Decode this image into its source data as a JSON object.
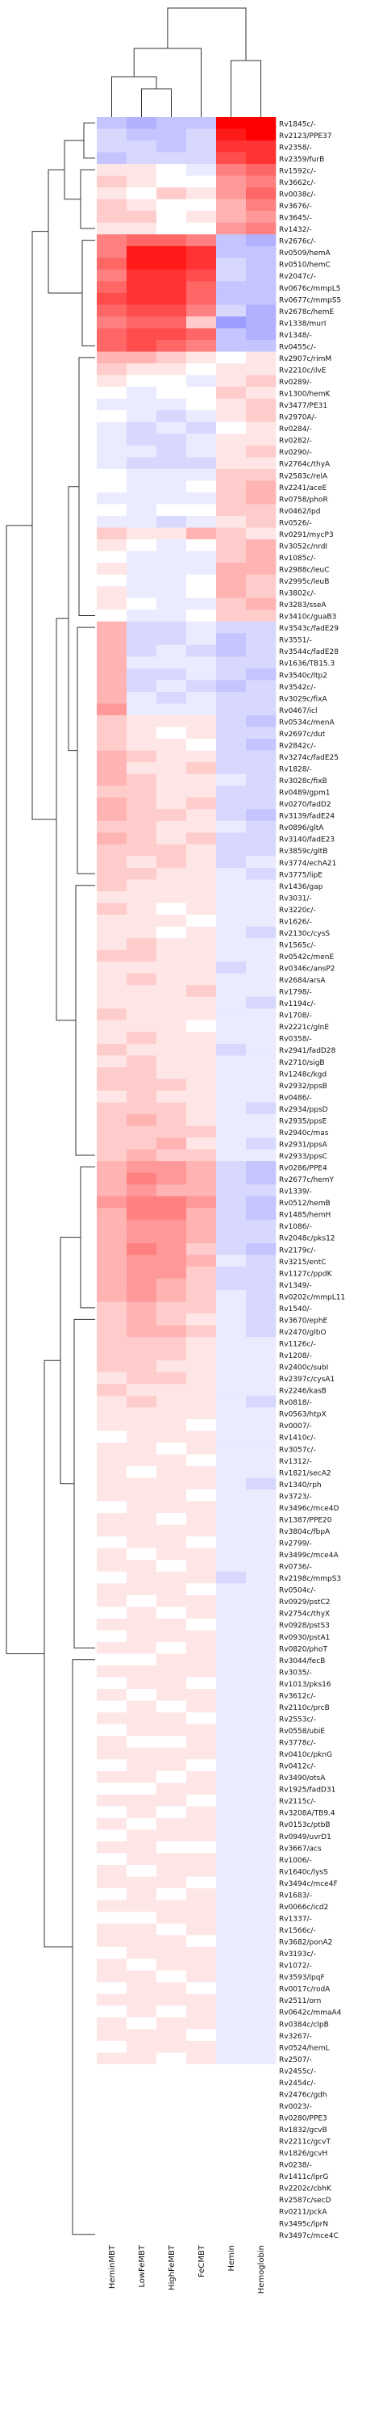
{
  "chart_data": {
    "type": "heatmap",
    "title": "",
    "xlabel": "",
    "ylabel": "",
    "color_scale": {
      "low": "#3b3bff",
      "mid": "#ffffff",
      "high": "#ff0000",
      "range": [
        -1,
        1
      ]
    },
    "columns": [
      "HeminMBT",
      "LowFeMBT",
      "HighFeMBT",
      "FeCMBT",
      "Hemin",
      "Hemoglobin"
    ],
    "rows": [
      "Rv1845c/-",
      "Rv2123/PPE37",
      "Rv2358/-",
      "Rv2359/furB",
      "Rv1592c/-",
      "Rv3662c/-",
      "Rv0038c/-",
      "Rv3676/-",
      "Rv3645/-",
      "Rv1432/-",
      "Rv2676c/-",
      "Rv0509/hemA",
      "Rv0510/hemC",
      "Rv2047c/-",
      "Rv0676c/mmpL5",
      "Rv0677c/mmpS5",
      "Rv2678c/hemE",
      "Rv1338/murI",
      "Rv1348/-",
      "Rv0455c/-",
      "Rv2907c/rimM",
      "Rv2210c/ilvE",
      "Rv0289/-",
      "Rv1300/hemK",
      "Rv3477/PE31",
      "Rv2970A/-",
      "Rv0284/-",
      "Rv0282/-",
      "Rv0290/-",
      "Rv2764c/thyA",
      "Rv2583c/relA",
      "Rv2241/aceE",
      "Rv0758/phoR",
      "Rv0462/lpd",
      "Rv0526/-",
      "Rv0291/mycP3",
      "Rv3052c/nrdI",
      "Rv1085c/-",
      "Rv2988c/leuC",
      "Rv2995c/leuB",
      "Rv3802c/-",
      "Rv3283/sseA",
      "Rv3410c/guaB3",
      "Rv3543c/fadE29",
      "Rv3551/-",
      "Rv3544c/fadE28",
      "Rv1636/TB15.3",
      "Rv3540c/ltp2",
      "Rv3542c/-",
      "Rv3029c/fixA",
      "Rv0467/icl",
      "Rv0534c/menA",
      "Rv2697c/dut",
      "Rv2842c/-",
      "Rv3274c/fadE25",
      "Rv1828/-",
      "Rv3028c/fixB",
      "Rv0489/gpm1",
      "Rv0270/fadD2",
      "Rv3139/fadE24",
      "Rv0896/gltA",
      "Rv3140/fadE23",
      "Rv3859c/gltB",
      "Rv3774/echA21",
      "Rv3775/lipE",
      "Rv1436/gap",
      "Rv3031/-",
      "Rv3220c/-",
      "Rv1626/-",
      "Rv2130c/cysS",
      "Rv1565c/-",
      "Rv0542c/menE",
      "Rv0346c/ansP2",
      "Rv2684/arsA",
      "Rv1798/-",
      "Rv1194c/-",
      "Rv1708/-",
      "Rv2221c/glnE",
      "Rv0358/-",
      "Rv2941/fadD28",
      "Rv2710/sigB",
      "Rv1248c/kgd",
      "Rv2932/ppsB",
      "Rv0486/-",
      "Rv2934/ppsD",
      "Rv2935/ppsE",
      "Rv2940c/mas",
      "Rv2931/ppsA",
      "Rv2933/ppsC",
      "Rv0286/PPE4",
      "Rv2677c/hemY",
      "Rv1339/-",
      "Rv0512/hemB",
      "Rv1485/hemH",
      "Rv1086/-",
      "Rv2048c/pks12",
      "Rv2179c/-",
      "Rv3215/entC",
      "Rv1127c/ppdK",
      "Rv1349/-",
      "Rv0202c/mmpL11",
      "Rv1540/-",
      "Rv3670/ephE",
      "Rv2470/glbO",
      "Rv1126c/-",
      "Rv1208/-",
      "Rv2400c/subI",
      "Rv2397c/cysA1",
      "Rv2246/kasB",
      "Rv0818/-",
      "Rv0563/htpX",
      "Rv0007/-",
      "Rv1410c/-",
      "Rv3057c/-",
      "Rv1312/-",
      "Rv1821/secA2",
      "Rv1340/rph",
      "Rv3723/-",
      "Rv3496c/mce4D",
      "Rv1387/PPE20",
      "Rv3804c/fbpA",
      "Rv2799/-",
      "Rv3499c/mce4A",
      "Rv0736/-",
      "Rv2198c/mmpS3",
      "Rv0504c/-",
      "Rv0929/pstC2",
      "Rv2754c/thyX",
      "Rv0928/pstS3",
      "Rv0930/pstA1",
      "Rv0820/phoT",
      "Rv3044/fecB",
      "Rv3035/-",
      "Rv1013/pks16",
      "Rv3612c/-",
      "Rv2110c/prcB",
      "Rv2553c/-",
      "Rv0558/ubiE",
      "Rv3778c/-",
      "Rv0410c/pknG",
      "Rv0412c/-",
      "Rv3490/otsA",
      "Rv1925/fadD31",
      "Rv2115c/-",
      "Rv3208A/TB9.4",
      "Rv0153c/ptbB",
      "Rv0949/uvrD1",
      "Rv3667/acs",
      "Rv1006/-",
      "Rv1640c/lysS",
      "Rv3494c/mce4F",
      "Rv1683/-",
      "Rv0066c/icd2",
      "Rv1337/-",
      "Rv1566c/-",
      "Rv3682/ponA2",
      "Rv3193c/-",
      "Rv1072/-",
      "Rv3593/lpqF",
      "Rv0017c/rodA",
      "Rv2511/orn",
      "Rv0642c/mmaA4",
      "Rv0384c/clpB",
      "Rv3267/-",
      "Rv0524/hemL",
      "Rv2507/-",
      "Rv2455c/-",
      "Rv2454c/-",
      "Rv2476c/gdh",
      "Rv0023/-",
      "Rv0280/PPE3",
      "Rv1832/gcvB",
      "Rv2211c/gcvT",
      "Rv1826/gcvH",
      "Rv0238/-",
      "Rv1411c/lprG",
      "Rv2202c/cbhK",
      "Rv2587c/secD",
      "Rv0211/pckA",
      "Rv3495c/lprN",
      "Rv3497c/mce4C"
    ],
    "values": [
      [
        -0.3,
        -0.4,
        -0.3,
        -0.3,
        1,
        1
      ],
      [
        -0.2,
        -0.3,
        -0.3,
        -0.2,
        0.9,
        1
      ],
      [
        -0.2,
        -0.2,
        -0.3,
        -0.2,
        0.8,
        0.8
      ],
      [
        -0.3,
        -0.2,
        -0.2,
        -0.2,
        0.7,
        0.8
      ],
      [
        0.1,
        0.1,
        0,
        -0.1,
        0.5,
        0.6
      ],
      [
        0.2,
        0.1,
        0,
        0,
        0.4,
        0.5
      ],
      [
        0.1,
        0,
        0.2,
        0.1,
        0.4,
        0.6
      ],
      [
        0.2,
        0.1,
        0,
        0,
        0.3,
        0.5
      ],
      [
        0.2,
        0.2,
        0,
        0.1,
        0.3,
        0.4
      ],
      [
        0.1,
        0.1,
        0,
        0,
        0.4,
        0.5
      ],
      [
        0.5,
        0.6,
        0.6,
        0.5,
        -0.3,
        -0.4
      ],
      [
        0.5,
        0.9,
        0.9,
        0.8,
        -0.3,
        -0.3
      ],
      [
        0.6,
        0.9,
        0.9,
        0.8,
        -0.2,
        -0.3
      ],
      [
        0.5,
        0.8,
        0.8,
        0.7,
        -0.2,
        -0.3
      ],
      [
        0.6,
        0.8,
        0.8,
        0.6,
        -0.3,
        -0.3
      ],
      [
        0.7,
        0.8,
        0.8,
        0.6,
        -0.3,
        -0.3
      ],
      [
        0.6,
        0.7,
        0.7,
        0.5,
        -0.2,
        -0.4
      ],
      [
        0.5,
        0.6,
        0.6,
        0.2,
        -0.5,
        -0.4
      ],
      [
        0.6,
        0.7,
        0.7,
        0.6,
        -0.3,
        -0.4
      ],
      [
        0.6,
        0.7,
        0.6,
        0.5,
        -0.3,
        -0.3
      ],
      [
        0.3,
        0.3,
        0.2,
        0.1,
        0,
        0.1
      ],
      [
        0.2,
        0.1,
        0.1,
        0,
        0.1,
        0.1
      ],
      [
        0.1,
        0,
        0,
        -0.1,
        0.1,
        0.2
      ],
      [
        0,
        -0.1,
        0,
        0,
        0.2,
        0.1
      ],
      [
        -0.1,
        -0.1,
        -0.1,
        0,
        0.1,
        0.2
      ],
      [
        0,
        -0.1,
        -0.2,
        -0.1,
        0.1,
        0.2
      ],
      [
        -0.1,
        -0.2,
        -0.1,
        -0.2,
        0,
        0.1
      ],
      [
        -0.1,
        -0.2,
        -0.2,
        -0.1,
        0.1,
        0.1
      ],
      [
        -0.1,
        -0.1,
        -0.2,
        -0.1,
        0.1,
        0.2
      ],
      [
        -0.1,
        -0.2,
        -0.2,
        -0.2,
        0.1,
        0.1
      ],
      [
        0,
        -0.1,
        -0.1,
        -0.1,
        0.2,
        0.2
      ],
      [
        0,
        -0.1,
        -0.1,
        0,
        0.2,
        0.3
      ],
      [
        -0.1,
        -0.1,
        -0.1,
        -0.1,
        0.2,
        0.3
      ],
      [
        0,
        -0.1,
        0,
        0,
        0.2,
        0.2
      ],
      [
        -0.1,
        -0.1,
        -0.2,
        -0.1,
        0.1,
        0.2
      ],
      [
        0.2,
        0.1,
        0.1,
        0.3,
        0.2,
        0.1
      ],
      [
        0.1,
        0,
        -0.1,
        0,
        0.2,
        0.3
      ],
      [
        0,
        -0.1,
        -0.1,
        -0.1,
        0.2,
        0.3
      ],
      [
        0.1,
        -0.1,
        -0.1,
        -0.1,
        0.3,
        0.3
      ],
      [
        0,
        -0.1,
        -0.1,
        0,
        0.3,
        0.2
      ],
      [
        0.1,
        -0.1,
        -0.1,
        0,
        0.3,
        0.2
      ],
      [
        0.1,
        0,
        -0.1,
        -0.1,
        0.2,
        0.3
      ],
      [
        0,
        -0.1,
        -0.1,
        0,
        0.2,
        0.2
      ],
      [
        0.3,
        -0.2,
        -0.2,
        -0.1,
        -0.2,
        -0.2
      ],
      [
        0.3,
        -0.2,
        -0.2,
        -0.1,
        -0.3,
        -0.2
      ],
      [
        0.3,
        -0.2,
        -0.1,
        -0.2,
        -0.3,
        -0.2
      ],
      [
        0.3,
        -0.1,
        -0.1,
        -0.1,
        -0.2,
        -0.2
      ],
      [
        0.3,
        -0.2,
        -0.2,
        -0.1,
        -0.2,
        -0.3
      ],
      [
        0.3,
        -0.2,
        -0.1,
        -0.2,
        -0.3,
        -0.2
      ],
      [
        0.3,
        -0.1,
        -0.2,
        -0.1,
        -0.2,
        -0.2
      ],
      [
        0.4,
        -0.1,
        -0.1,
        -0.1,
        -0.2,
        -0.2
      ],
      [
        0.2,
        0.1,
        0.1,
        0.1,
        -0.2,
        -0.3
      ],
      [
        0.2,
        0.1,
        0,
        0.1,
        -0.2,
        -0.2
      ],
      [
        0.2,
        0.1,
        0.1,
        0,
        -0.2,
        -0.3
      ],
      [
        0.3,
        0.2,
        0.1,
        0.1,
        -0.2,
        -0.2
      ],
      [
        0.3,
        0.1,
        0.1,
        0.2,
        -0.2,
        -0.2
      ],
      [
        0.3,
        0.2,
        0.1,
        0.1,
        -0.1,
        -0.2
      ],
      [
        0.2,
        0.2,
        0.1,
        0.1,
        -0.2,
        -0.2
      ],
      [
        0.3,
        0.2,
        0.1,
        0.2,
        -0.2,
        -0.2
      ],
      [
        0.3,
        0.2,
        0.2,
        0.1,
        -0.2,
        -0.3
      ],
      [
        0.2,
        0.2,
        0.1,
        0.1,
        -0.1,
        -0.2
      ],
      [
        0.3,
        0.2,
        0.1,
        0.2,
        -0.2,
        -0.2
      ],
      [
        0.2,
        0.2,
        0.2,
        0.1,
        -0.2,
        -0.2
      ],
      [
        0.2,
        0.1,
        0.2,
        0.1,
        -0.2,
        -0.1
      ],
      [
        0.2,
        0.2,
        0.1,
        0.1,
        -0.1,
        -0.2
      ],
      [
        0.2,
        0.1,
        0.1,
        0.1,
        -0.1,
        -0.1
      ],
      [
        0.1,
        0.1,
        0.1,
        0.1,
        -0.1,
        -0.1
      ],
      [
        0.2,
        0.1,
        0,
        0.1,
        -0.1,
        -0.1
      ],
      [
        0.1,
        0.1,
        0.1,
        0,
        -0.1,
        -0.1
      ],
      [
        0.1,
        0.1,
        0,
        0.1,
        -0.1,
        -0.2
      ],
      [
        0.1,
        0.2,
        0.1,
        0.1,
        -0.1,
        -0.1
      ],
      [
        0.2,
        0.2,
        0.1,
        0.1,
        -0.1,
        -0.1
      ],
      [
        0.1,
        0.1,
        0.1,
        0.1,
        -0.2,
        -0.1
      ],
      [
        0.1,
        0.2,
        0.1,
        0.1,
        -0.1,
        -0.1
      ],
      [
        0.1,
        0.1,
        0.1,
        0.2,
        -0.1,
        -0.1
      ],
      [
        0.1,
        0.1,
        0.1,
        0.1,
        -0.1,
        -0.2
      ],
      [
        0.2,
        0.1,
        0.1,
        0.1,
        -0.1,
        -0.1
      ],
      [
        0.1,
        0.1,
        0.1,
        0,
        -0.1,
        -0.1
      ],
      [
        0.1,
        0.2,
        0.1,
        0.1,
        -0.1,
        -0.1
      ],
      [
        0.2,
        0.1,
        0.1,
        0.1,
        -0.2,
        -0.1
      ],
      [
        0.1,
        0.2,
        0.1,
        0.1,
        -0.1,
        -0.1
      ],
      [
        0.2,
        0.2,
        0.1,
        0.1,
        -0.1,
        -0.1
      ],
      [
        0.2,
        0.2,
        0.2,
        0.1,
        -0.1,
        -0.1
      ],
      [
        0.1,
        0.2,
        0.1,
        0.1,
        -0.1,
        -0.1
      ],
      [
        0.2,
        0.2,
        0.2,
        0.1,
        -0.1,
        -0.2
      ],
      [
        0.2,
        0.3,
        0.2,
        0.1,
        -0.1,
        -0.1
      ],
      [
        0.2,
        0.2,
        0.2,
        0.2,
        -0.1,
        -0.1
      ],
      [
        0.2,
        0.2,
        0.3,
        0.1,
        -0.1,
        -0.2
      ],
      [
        0.2,
        0.3,
        0.2,
        0.2,
        -0.1,
        -0.1
      ],
      [
        0.3,
        0.4,
        0.4,
        0.3,
        -0.2,
        -0.3
      ],
      [
        0.3,
        0.5,
        0.4,
        0.3,
        -0.2,
        -0.3
      ],
      [
        0.3,
        0.4,
        0.3,
        0.3,
        -0.2,
        -0.2
      ],
      [
        0.4,
        0.5,
        0.5,
        0.4,
        -0.2,
        -0.3
      ],
      [
        0.3,
        0.5,
        0.5,
        0.3,
        -0.2,
        -0.3
      ],
      [
        0.3,
        0.4,
        0.4,
        0.3,
        -0.2,
        -0.2
      ],
      [
        0.3,
        0.4,
        0.4,
        0.3,
        -0.2,
        -0.2
      ],
      [
        0.3,
        0.5,
        0.4,
        0.2,
        -0.2,
        -0.3
      ],
      [
        0.3,
        0.4,
        0.4,
        0.3,
        -0.1,
        -0.2
      ],
      [
        0.3,
        0.4,
        0.4,
        0.2,
        -0.2,
        -0.2
      ],
      [
        0.3,
        0.4,
        0.3,
        0.2,
        -0.2,
        -0.2
      ],
      [
        0.3,
        0.4,
        0.3,
        0.2,
        -0.1,
        -0.2
      ],
      [
        0.2,
        0.3,
        0.2,
        0.2,
        -0.1,
        -0.2
      ],
      [
        0.2,
        0.3,
        0.2,
        0.1,
        -0.1,
        -0.2
      ],
      [
        0.2,
        0.3,
        0.3,
        0.2,
        -0.1,
        -0.2
      ],
      [
        0.2,
        0.2,
        0.2,
        0.1,
        -0.1,
        -0.1
      ],
      [
        0.2,
        0.2,
        0.2,
        0.1,
        -0.1,
        -0.1
      ],
      [
        0.2,
        0.2,
        0.1,
        0.1,
        -0.1,
        -0.1
      ],
      [
        0.1,
        0.2,
        0.2,
        0.1,
        -0.1,
        -0.1
      ],
      [
        0.2,
        0.1,
        0.1,
        0.1,
        -0.1,
        -0.1
      ],
      [
        0.1,
        0.2,
        0.1,
        0.1,
        -0.1,
        -0.2
      ],
      [
        0.1,
        0.1,
        0.1,
        0.1,
        -0.1,
        -0.1
      ],
      [
        0.1,
        0.1,
        0.1,
        0,
        -0.1,
        -0.1
      ],
      [
        0,
        0.1,
        0.1,
        0.1,
        -0.1,
        -0.1
      ],
      [
        0.1,
        0.1,
        0,
        0.1,
        -0.1,
        -0.1
      ],
      [
        0.1,
        0.1,
        0.1,
        0,
        -0.1,
        -0.1
      ],
      [
        0.1,
        0,
        0.1,
        0.1,
        -0.1,
        -0.1
      ],
      [
        0.1,
        0.1,
        0.1,
        0.1,
        -0.1,
        -0.2
      ],
      [
        0.1,
        0.1,
        0.1,
        0,
        -0.1,
        -0.1
      ],
      [
        0,
        0.1,
        0.1,
        0.1,
        -0.1,
        -0.1
      ],
      [
        0.1,
        0.1,
        0,
        0.1,
        -0.1,
        -0.1
      ],
      [
        0.1,
        0.1,
        0.1,
        0.1,
        -0.1,
        -0.1
      ],
      [
        0,
        0.1,
        0.1,
        0,
        -0.1,
        -0.1
      ],
      [
        0.1,
        0,
        0.1,
        0.1,
        -0.1,
        -0.1
      ],
      [
        0.1,
        0.1,
        0,
        0.1,
        -0.1,
        -0.1
      ],
      [
        0,
        0.1,
        0.1,
        0.1,
        -0.2,
        -0.1
      ],
      [
        0.1,
        0.1,
        0.1,
        0,
        -0.1,
        -0.1
      ],
      [
        0.1,
        0,
        0.1,
        0.1,
        -0.1,
        -0.1
      ],
      [
        0,
        0.1,
        0,
        0.1,
        -0.1,
        -0.1
      ],
      [
        0.1,
        0.1,
        0.1,
        0,
        -0.1,
        -0.1
      ],
      [
        0,
        0.1,
        0.1,
        0.1,
        -0.1,
        -0.1
      ],
      [
        0.1,
        0.1,
        0,
        0.1,
        -0.1,
        -0.1
      ],
      [
        0,
        0,
        0.1,
        0.1,
        -0.1,
        -0.1
      ],
      [
        0.1,
        0.1,
        0.1,
        0.1,
        -0.1,
        -0.1
      ],
      [
        0,
        0.1,
        0.1,
        0,
        -0.1,
        -0.1
      ],
      [
        0.1,
        0,
        0.1,
        0.1,
        -0.1,
        -0.1
      ],
      [
        0,
        0.1,
        0,
        0.1,
        -0.1,
        -0.1
      ],
      [
        0.1,
        0.1,
        0.1,
        0,
        -0.1,
        -0.1
      ],
      [
        0,
        0.1,
        0.1,
        0.1,
        -0.1,
        -0.1
      ],
      [
        0.1,
        0,
        0,
        0.1,
        -0.1,
        -0.1
      ],
      [
        0.1,
        0.1,
        0.1,
        0.1,
        -0.1,
        -0.1
      ],
      [
        0,
        0.1,
        0.1,
        0,
        -0.1,
        -0.1
      ],
      [
        0.1,
        0.1,
        0,
        0.1,
        -0.1,
        -0.1
      ],
      [
        0,
        0,
        0.1,
        0.1,
        -0.1,
        -0.1
      ],
      [
        0.1,
        0.1,
        0.1,
        0,
        -0.1,
        -0.1
      ],
      [
        0,
        0.1,
        0,
        0.1,
        -0.1,
        -0.1
      ],
      [
        0.1,
        0,
        0.1,
        0.1,
        -0.1,
        -0.1
      ],
      [
        0,
        0.1,
        0.1,
        0.1,
        -0.1,
        -0.1
      ],
      [
        0.1,
        0.1,
        0,
        0,
        -0.1,
        -0.1
      ],
      [
        0,
        0.1,
        0.1,
        0.1,
        -0.1,
        -0.1
      ],
      [
        0.1,
        0,
        0.1,
        0.1,
        -0.1,
        -0.1
      ],
      [
        0.1,
        0.1,
        0.1,
        0,
        -0.1,
        -0.1
      ],
      [
        0,
        0.1,
        0,
        0.1,
        -0.1,
        -0.1
      ],
      [
        0.1,
        0.1,
        0.1,
        0.1,
        -0.1,
        -0.1
      ],
      [
        0,
        0,
        0.1,
        0.1,
        -0.1,
        -0.1
      ],
      [
        0.1,
        0.1,
        0,
        0.1,
        -0.1,
        -0.1
      ],
      [
        0.1,
        0.1,
        0.1,
        0,
        -0.1,
        -0.1
      ],
      [
        0,
        0.1,
        0.1,
        0.1,
        -0.1,
        -0.1
      ],
      [
        0.1,
        0,
        0.1,
        0.1,
        -0.1,
        -0.1
      ],
      [
        0.1,
        0.1,
        0,
        0.1,
        -0.1,
        -0.1
      ],
      [
        0,
        0.1,
        0.1,
        0,
        -0.1,
        -0.1
      ],
      [
        0.1,
        0.1,
        0.1,
        0.1,
        -0.1,
        -0.1
      ],
      [
        0,
        0.1,
        0,
        0.1,
        -0.1,
        -0.1
      ],
      [
        0.1,
        0,
        0.1,
        0.1,
        -0.1,
        -0.1
      ],
      [
        0.1,
        0.1,
        0.1,
        0,
        -0.1,
        -0.1
      ],
      [
        0,
        0.1,
        0.1,
        0.1,
        -0.1,
        -0.1
      ],
      [
        0.1,
        0.1,
        0,
        0.1,
        -0.1,
        -0.1
      ]
    ],
    "grid": false,
    "legend": "none",
    "row_dendrogram": true,
    "column_dendrogram": true
  }
}
